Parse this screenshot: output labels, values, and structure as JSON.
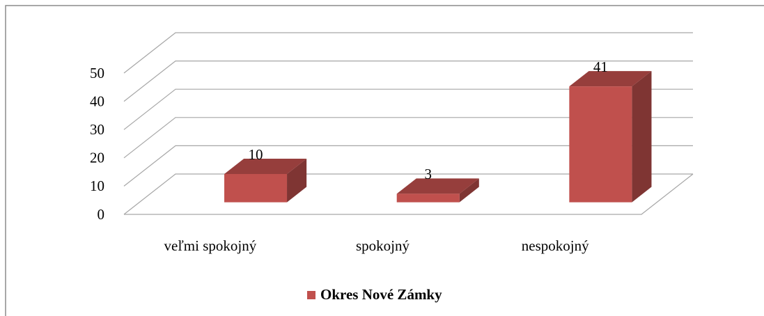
{
  "chart_data": {
    "type": "bar3d",
    "categories": [
      "veľmi spokojný",
      "spokojný",
      "nespokojný"
    ],
    "series": [
      {
        "name": "Okres Nové Zámky",
        "color": "#c0504d",
        "values": [
          10,
          3,
          41
        ]
      }
    ],
    "ylim": [
      0,
      50
    ],
    "yticks": [
      0,
      10,
      20,
      30,
      40,
      50
    ],
    "grid": true,
    "legend": "bottom"
  }
}
